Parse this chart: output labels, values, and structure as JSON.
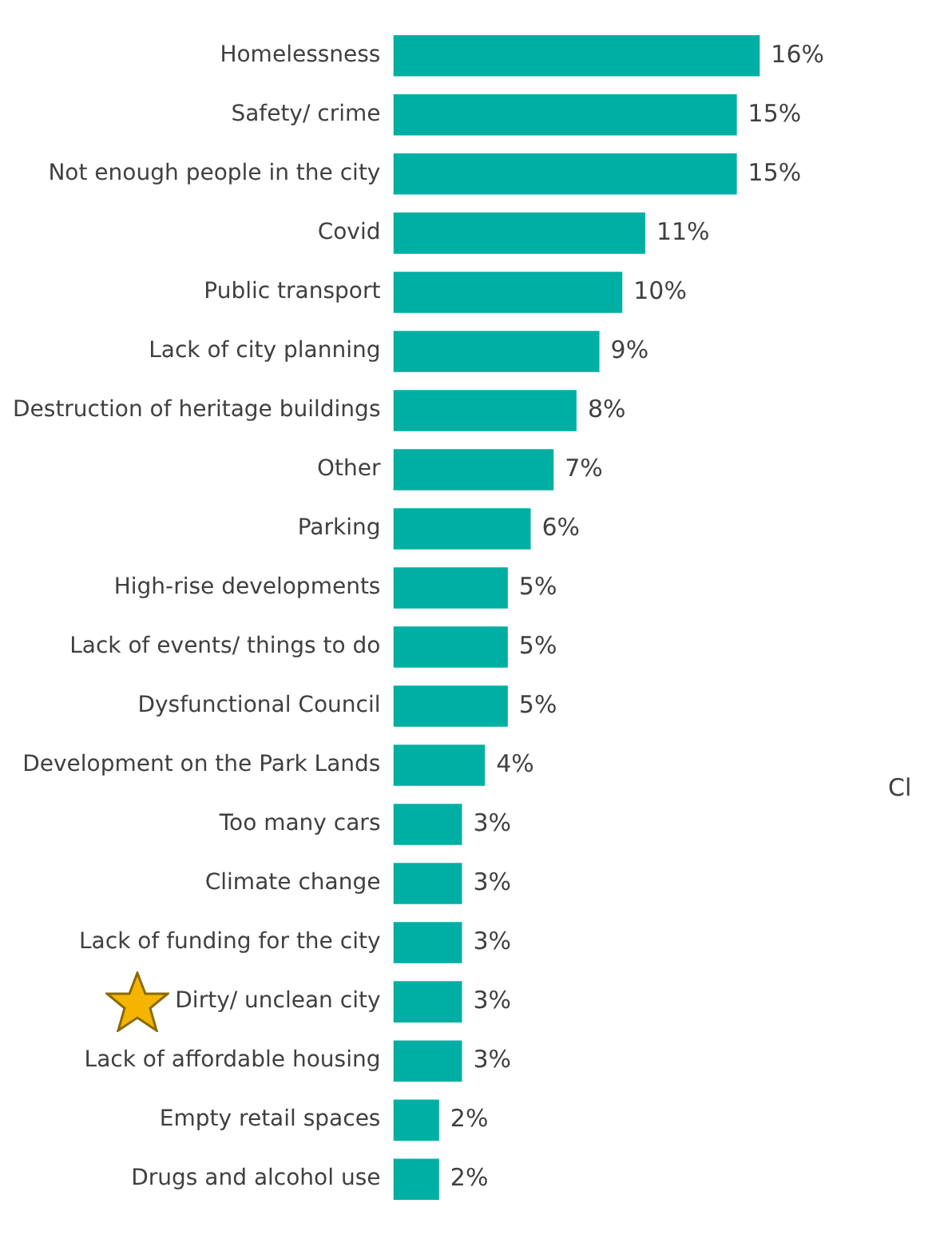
{
  "chart_data": {
    "type": "bar",
    "orientation": "horizontal",
    "categories": [
      "Homelessness",
      "Safety/ crime",
      "Not enough people in the city",
      "Covid",
      "Public transport",
      "Lack of city planning",
      "Destruction of heritage buildings",
      "Other",
      "Parking",
      "High-rise developments",
      "Lack of events/ things to do",
      "Dysfunctional Council",
      "Development on the Park Lands",
      "Too many cars",
      "Climate change",
      "Lack of funding for the city",
      "Dirty/ unclean city",
      "Lack of affordable housing",
      "Empty retail spaces",
      "Drugs and alcohol use"
    ],
    "values": [
      16,
      15,
      15,
      11,
      10,
      9,
      8,
      7,
      6,
      5,
      5,
      5,
      4,
      3,
      3,
      3,
      3,
      3,
      2,
      2
    ],
    "value_labels": [
      "16%",
      "15%",
      "15%",
      "11%",
      "10%",
      "9%",
      "8%",
      "7%",
      "6%",
      "5%",
      "5%",
      "5%",
      "4%",
      "3%",
      "3%",
      "3%",
      "3%",
      "3%",
      "2%",
      "2%"
    ],
    "color": "#00afa3",
    "legend": false,
    "annotations": [
      "Cl"
    ]
  }
}
